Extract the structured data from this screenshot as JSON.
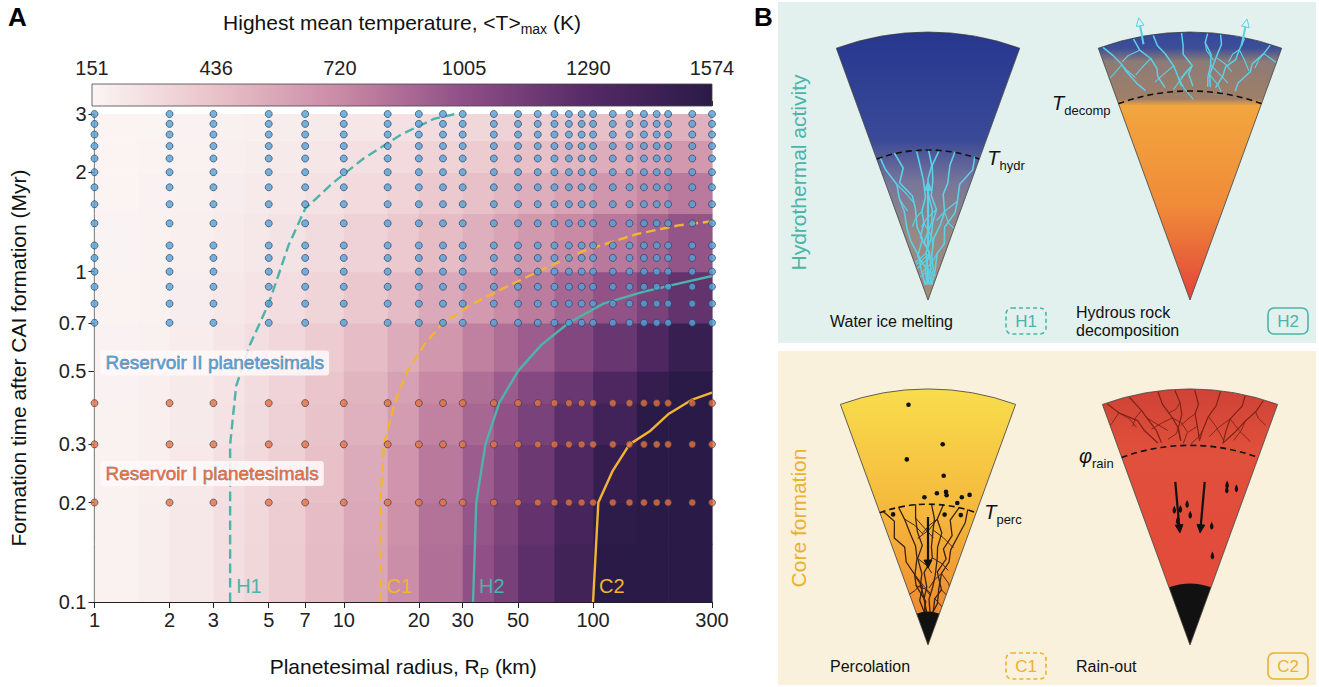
{
  "chart_data": {
    "type": "heatmap",
    "panel_label": "A",
    "x_label": "Planetesimal radius, RP (km)",
    "x_label_subscript": "P",
    "y_label": "Formation time after CAI formation (Myr)",
    "log": true,
    "grid": false,
    "xlim": [
      1,
      300
    ],
    "xticks": [
      1,
      2,
      3,
      5,
      7,
      10,
      20,
      30,
      50,
      100,
      300
    ],
    "ylim": [
      0.1,
      3
    ],
    "yticks": [
      0.1,
      0.2,
      0.3,
      0.5,
      0.7,
      1,
      2,
      3
    ],
    "colorbar": {
      "label": "Highest mean temperature, <T>max (K)",
      "label_subscript": "max",
      "range": [
        151,
        1574
      ],
      "ticks": [
        151,
        436,
        720,
        1005,
        1290,
        1574
      ],
      "colors": [
        "#fbf5f4",
        "#e9c2c9",
        "#c98aa5",
        "#8f4f86",
        "#552a66",
        "#2a1a47"
      ]
    },
    "heatmap": {
      "x_edges": [
        1,
        1.5,
        2,
        3,
        4,
        5,
        7,
        10,
        15,
        20,
        30,
        40,
        50,
        70,
        100,
        150,
        200,
        300
      ],
      "y_edges": [
        0.1,
        0.15,
        0.2,
        0.3,
        0.4,
        0.5,
        0.7,
        1,
        1.5,
        2,
        2.5,
        3
      ],
      "values": [
        [
          170,
          190,
          225,
          275,
          320,
          380,
          470,
          580,
          700,
          850,
          1000,
          1120,
          1250,
          1420,
          1574,
          1574,
          1574
        ],
        [
          169,
          189,
          223,
          271,
          315,
          373,
          460,
          567,
          684,
          829,
          975,
          1091,
          1217,
          1382,
          1557,
          1574,
          1574
        ],
        [
          169,
          187,
          220,
          266,
          308,
          364,
          448,
          550,
          662,
          801,
          941,
          1052,
          1173,
          1331,
          1499,
          1574,
          1574
        ],
        [
          168,
          185,
          215,
          259,
          298,
          350,
          429,
          524,
          629,
          759,
          890,
          994,
          1107,
          1255,
          1412,
          1574,
          1574
        ],
        [
          167,
          183,
          212,
          253,
          290,
          339,
          413,
          503,
          601,
          724,
          847,
          946,
          1052,
          1192,
          1339,
          1503,
          1574
        ],
        [
          165,
          179,
          204,
          240,
          273,
          316,
          381,
          460,
          546,
          654,
          762,
          849,
          942,
          1065,
          1194,
          1338,
          1482
        ],
        [
          162,
          174,
          194,
          223,
          249,
          284,
          336,
          400,
          469,
          556,
          643,
          713,
          788,
          887,
          991,
          1107,
          1223
        ],
        [
          160,
          169,
          184,
          207,
          227,
          254,
          295,
          344,
          398,
          466,
          533,
          587,
          646,
          722,
          803,
          893,
          983
        ],
        [
          158,
          165,
          177,
          194,
          210,
          231,
          263,
          301,
          343,
          396,
          448,
          490,
          536,
          595,
          658,
          728,
          798
        ],
        [
          156,
          162,
          171,
          185,
          197,
          213,
          237,
          267,
          299,
          340,
          380,
          413,
          448,
          494,
          542,
          596,
          650
        ],
        [
          155,
          159,
          166,
          176,
          185,
          197,
          215,
          237,
          261,
          291,
          321,
          345,
          371,
          405,
          441,
          481,
          521
        ]
      ]
    },
    "series": [
      {
        "name": "H1",
        "type": "line",
        "color": "#4cb4a8",
        "line_style": "dashed",
        "x": [
          3.5,
          3.5,
          3.7,
          4.2,
          5,
          6,
          7,
          9,
          12,
          17,
          23,
          28
        ],
        "y": [
          0.1,
          0.3,
          0.45,
          0.6,
          0.8,
          1.2,
          1.55,
          1.85,
          2.2,
          2.6,
          2.9,
          3
        ]
      },
      {
        "name": "C1",
        "type": "line",
        "color": "#f2b532",
        "line_style": "dashed",
        "x": [
          14,
          14,
          14.5,
          16,
          18,
          21,
          25,
          33,
          45,
          60,
          90,
          150,
          220,
          300
        ],
        "y": [
          0.1,
          0.2,
          0.3,
          0.4,
          0.5,
          0.6,
          0.7,
          0.8,
          0.9,
          1,
          1.15,
          1.3,
          1.38,
          1.42
        ]
      },
      {
        "name": "H2",
        "type": "line",
        "color": "#4cb4a8",
        "line_style": "solid",
        "x": [
          33,
          34,
          37,
          42,
          50,
          62,
          80,
          110,
          160,
          220,
          300
        ],
        "y": [
          0.1,
          0.2,
          0.3,
          0.4,
          0.5,
          0.6,
          0.7,
          0.8,
          0.87,
          0.92,
          0.97
        ]
      },
      {
        "name": "C2",
        "type": "line",
        "color": "#f2b532",
        "line_style": "solid",
        "x": [
          100,
          105,
          120,
          140,
          170,
          200,
          250,
          300
        ],
        "y": [
          0.1,
          0.2,
          0.25,
          0.3,
          0.33,
          0.37,
          0.41,
          0.43
        ]
      },
      {
        "name": "Reservoir II planetesimals",
        "type": "scatter",
        "color": "#55a0d8",
        "marker": "circle",
        "x_grid": [
          1,
          2,
          3,
          5,
          7,
          10,
          15,
          20,
          25,
          30,
          40,
          50,
          60,
          70,
          80,
          90,
          100,
          120,
          140,
          160,
          180,
          200,
          250,
          300
        ],
        "y_grid": [
          0.7,
          0.8,
          0.9,
          1,
          1.1,
          1.2,
          1.4,
          1.6,
          1.8,
          2,
          2.2,
          2.4,
          2.6,
          2.8,
          3
        ]
      },
      {
        "name": "Reservoir I planetesimals",
        "type": "scatter",
        "color": "#e8703f",
        "marker": "circle",
        "x_grid": [
          1,
          2,
          3,
          5,
          7,
          10,
          15,
          20,
          25,
          30,
          40,
          50,
          60,
          70,
          80,
          90,
          100,
          120,
          140,
          160,
          180,
          200,
          250,
          300
        ],
        "y_grid": [
          0.2,
          0.3,
          0.4
        ]
      }
    ]
  },
  "diagram": {
    "panel_label": "B",
    "groups": [
      {
        "title": "Hydrothermal activity",
        "color": "#4cb4a8",
        "panels": [
          {
            "caption": "Water ice melting",
            "tag": "H1",
            "line_style": "dashed",
            "threshold": {
              "symbol": "T",
              "subscript": "hydr"
            }
          },
          {
            "caption": "Hydrous rock decomposition",
            "tag": "H2",
            "line_style": "solid",
            "threshold": {
              "symbol": "T",
              "subscript": "decomp"
            }
          }
        ]
      },
      {
        "title": "Core formation",
        "color": "#eab132",
        "panels": [
          {
            "caption": "Percolation",
            "tag": "C1",
            "line_style": "dashed",
            "threshold": {
              "symbol": "T",
              "subscript": "perc"
            }
          },
          {
            "caption": "Rain-out",
            "tag": "C2",
            "line_style": "solid",
            "threshold": {
              "symbol": "φ",
              "subscript": "rain"
            }
          }
        ]
      }
    ]
  }
}
